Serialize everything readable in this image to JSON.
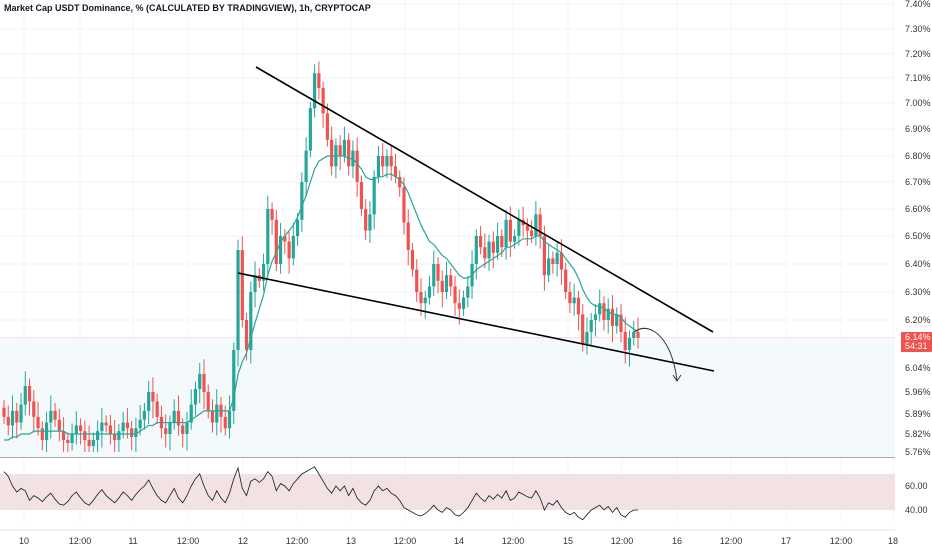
{
  "chart_data": {
    "type": "candlestick",
    "title": "Market Cap USDT Dominance, % (CALCULATED BY TRADINGVIEW), 1h, CRYPTOCAP",
    "ylim": [
      5.76,
      7.4
    ],
    "y_ticks": [
      "7.40%",
      "7.30%",
      "7.20%",
      "7.10%",
      "7.00%",
      "6.90%",
      "6.80%",
      "6.70%",
      "6.60%",
      "6.50%",
      "6.40%",
      "6.30%",
      "6.20%",
      "6.04%",
      "5.96%",
      "5.89%",
      "5.82%",
      "5.76%"
    ],
    "x_ticks": [
      "10",
      "12:00",
      "11",
      "12:00",
      "12",
      "12:00",
      "13",
      "12:00",
      "14",
      "12:00",
      "15",
      "12:00",
      "16",
      "12:00",
      "17",
      "12:00",
      "18"
    ],
    "bold_x_tick": "16",
    "current_price": "6.14%",
    "countdown": "54:31",
    "colors": {
      "up": "#26a69a",
      "down": "#ef5350",
      "ma": "#26a69a",
      "trendline": "#000000",
      "rsi_band": "#f3e2e4",
      "badge": "#ef5350"
    },
    "close_series": [
      5.88,
      5.85,
      5.9,
      5.86,
      5.92,
      5.98,
      5.93,
      5.88,
      5.84,
      5.8,
      5.86,
      5.9,
      5.87,
      5.83,
      5.8,
      5.79,
      5.82,
      5.85,
      5.83,
      5.8,
      5.78,
      5.8,
      5.83,
      5.86,
      5.85,
      5.82,
      5.8,
      5.83,
      5.86,
      5.84,
      5.81,
      5.84,
      5.87,
      5.9,
      5.96,
      5.93,
      5.88,
      5.84,
      5.82,
      5.86,
      5.9,
      5.85,
      5.82,
      5.86,
      5.92,
      5.97,
      6.02,
      5.96,
      5.9,
      5.86,
      5.92,
      5.88,
      5.84,
      5.9,
      6.1,
      6.45,
      6.2,
      6.1,
      6.3,
      6.36,
      6.34,
      6.4,
      6.6,
      6.56,
      6.4,
      6.5,
      6.48,
      6.42,
      6.5,
      6.56,
      6.7,
      6.82,
      6.98,
      7.12,
      7.06,
      6.96,
      6.86,
      6.76,
      6.84,
      6.8,
      6.86,
      6.76,
      6.82,
      6.7,
      6.6,
      6.52,
      6.58,
      6.72,
      6.8,
      6.76,
      6.8,
      6.76,
      6.72,
      6.68,
      6.55,
      6.45,
      6.38,
      6.3,
      6.26,
      6.28,
      6.32,
      6.4,
      6.34,
      6.3,
      6.36,
      6.32,
      6.26,
      6.24,
      6.28,
      6.32,
      6.4,
      6.5,
      6.46,
      6.42,
      6.48,
      6.44,
      6.5,
      6.46,
      6.56,
      6.48,
      6.5,
      6.56,
      6.54,
      6.52,
      6.5,
      6.58,
      6.5,
      6.36,
      6.42,
      6.4,
      6.44,
      6.38,
      6.3,
      6.26,
      6.28,
      6.22,
      6.12,
      6.16,
      6.2,
      6.22,
      6.26,
      6.2,
      6.24,
      6.18,
      6.22,
      6.16,
      6.1,
      6.14,
      6.16,
      6.14
    ],
    "ma_series": [
      5.8,
      5.8,
      5.81,
      5.81,
      5.82,
      5.82,
      5.82,
      5.83,
      5.83,
      5.83,
      5.83,
      5.83,
      5.83,
      5.83,
      5.83,
      5.82,
      5.82,
      5.82,
      5.82,
      5.82,
      5.82,
      5.82,
      5.82,
      5.82,
      5.82,
      5.82,
      5.82,
      5.82,
      5.82,
      5.82,
      5.82,
      5.82,
      5.83,
      5.84,
      5.85,
      5.85,
      5.86,
      5.86,
      5.86,
      5.86,
      5.86,
      5.86,
      5.86,
      5.86,
      5.87,
      5.88,
      5.89,
      5.9,
      5.9,
      5.9,
      5.9,
      5.9,
      5.9,
      5.9,
      5.94,
      6.02,
      6.06,
      6.09,
      6.14,
      6.19,
      6.24,
      6.29,
      6.36,
      6.41,
      6.44,
      6.48,
      6.5,
      6.52,
      6.54,
      6.57,
      6.61,
      6.65,
      6.7,
      6.75,
      6.78,
      6.79,
      6.8,
      6.8,
      6.8,
      6.8,
      6.8,
      6.79,
      6.79,
      6.77,
      6.75,
      6.72,
      6.71,
      6.71,
      6.72,
      6.72,
      6.73,
      6.73,
      6.72,
      6.71,
      6.69,
      6.66,
      6.62,
      6.58,
      6.54,
      6.51,
      6.48,
      6.47,
      6.45,
      6.43,
      6.42,
      6.4,
      6.38,
      6.36,
      6.35,
      6.35,
      6.36,
      6.38,
      6.39,
      6.4,
      6.41,
      6.42,
      6.43,
      6.44,
      6.46,
      6.46,
      6.47,
      6.48,
      6.49,
      6.49,
      6.49,
      6.5,
      6.5,
      6.48,
      6.47,
      6.46,
      6.45,
      6.44,
      6.42,
      6.4,
      6.38,
      6.35,
      6.31,
      6.28,
      6.26,
      6.25,
      6.25,
      6.24,
      6.23,
      6.22,
      6.22,
      6.21,
      6.19,
      6.18,
      6.17,
      6.16
    ],
    "rsi": {
      "band": [
        40,
        70
      ],
      "ticks": [
        "60.00",
        "40.00"
      ],
      "ylim": [
        30,
        80
      ],
      "values": [
        72,
        68,
        60,
        55,
        58,
        56,
        48,
        52,
        50,
        47,
        51,
        54,
        49,
        45,
        44,
        47,
        52,
        55,
        50,
        46,
        44,
        48,
        53,
        57,
        52,
        49,
        46,
        50,
        55,
        52,
        48,
        53,
        57,
        60,
        65,
        58,
        52,
        48,
        46,
        52,
        58,
        50,
        46,
        52,
        60,
        66,
        70,
        60,
        52,
        48,
        56,
        50,
        46,
        54,
        66,
        75,
        58,
        52,
        64,
        66,
        63,
        66,
        72,
        68,
        56,
        62,
        60,
        56,
        62,
        66,
        70,
        72,
        74,
        76,
        70,
        64,
        58,
        54,
        60,
        56,
        60,
        52,
        58,
        50,
        46,
        44,
        48,
        56,
        60,
        56,
        58,
        54,
        52,
        48,
        42,
        40,
        38,
        36,
        35,
        37,
        40,
        44,
        40,
        38,
        42,
        40,
        36,
        35,
        38,
        42,
        48,
        54,
        50,
        47,
        52,
        49,
        53,
        50,
        56,
        48,
        50,
        55,
        53,
        51,
        50,
        56,
        50,
        40,
        46,
        44,
        48,
        42,
        38,
        36,
        38,
        34,
        32,
        36,
        40,
        42,
        44,
        40,
        43,
        38,
        42,
        36,
        34,
        38,
        40,
        40
      ]
    }
  }
}
